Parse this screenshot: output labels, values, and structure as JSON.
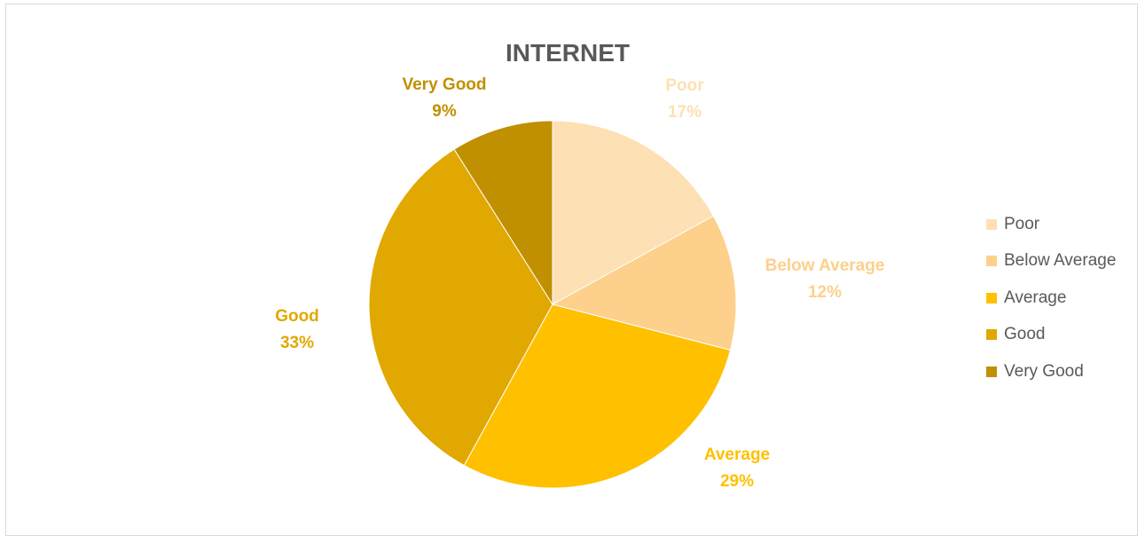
{
  "chart_data": {
    "type": "pie",
    "title": "INTERNET",
    "categories": [
      "Poor",
      "Below Average",
      "Average",
      "Good",
      "Very Good"
    ],
    "values": [
      17,
      12,
      29,
      33,
      9
    ],
    "labels": [
      "17%",
      "12%",
      "29%",
      "33%",
      "9%"
    ],
    "colors": [
      "#fde0b3",
      "#fdd08b",
      "#ffc000",
      "#e0a800",
      "#c09000"
    ],
    "label_colors": [
      "#fde0b3",
      "#fdd08b",
      "#ffc000",
      "#e0a800",
      "#c09000"
    ],
    "legend_position": "right",
    "start_angle_deg": 0,
    "direction": "clockwise"
  }
}
